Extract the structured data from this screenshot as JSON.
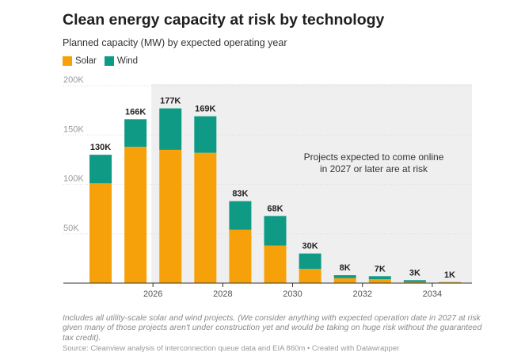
{
  "colors": {
    "solar": "#f7a10a",
    "wind": "#0f9a86",
    "risk_band": "#efefef",
    "axis_text": "#999999",
    "gridline": "#dedede"
  },
  "chart_data": {
    "type": "bar",
    "stacked": true,
    "title": "Clean energy capacity at risk by technology",
    "subtitle": "Planned capacity (MW) by expected operating year",
    "categories": [
      "2025",
      "2026",
      "2027",
      "2028",
      "2029",
      "2030",
      "2031",
      "2032",
      "2033",
      "2034",
      "2035"
    ],
    "series": [
      {
        "name": "Solar",
        "values": [
          101000,
          138000,
          135000,
          132000,
          54000,
          38000,
          14500,
          5000,
          4000,
          1000,
          800
        ]
      },
      {
        "name": "Wind",
        "values": [
          29000,
          28000,
          42000,
          37000,
          29000,
          30000,
          15500,
          3000,
          3000,
          2000,
          200
        ]
      }
    ],
    "totals": [
      130000,
      166000,
      177000,
      169000,
      83000,
      68000,
      30000,
      8000,
      7000,
      3000,
      1000
    ],
    "total_labels": [
      "130K",
      "166K",
      "177K",
      "169K",
      "83K",
      "68K",
      "30K",
      "8K",
      "7K",
      "3K",
      "1K"
    ],
    "xtick_labels": [
      "2026",
      "2028",
      "2030",
      "2032",
      "2034"
    ],
    "xtick_categories": [
      "2026",
      "2028",
      "2030",
      "2032",
      "2034"
    ],
    "yticks": [
      50000,
      100000,
      150000,
      200000
    ],
    "ytick_labels": [
      "50K",
      "100K",
      "150K",
      "200K"
    ],
    "ylim": [
      0,
      200000
    ],
    "xlabel": "",
    "ylabel": "",
    "legend_position": "top-left",
    "grid": true,
    "highlight_from_category": "2027",
    "annotation": [
      "Projects expected to come online",
      "in 2027 or later are at risk"
    ]
  },
  "notes": {
    "text": "Includes all utility-scale solar and wind projects. (We consider anything with expected operation date in 2027 at risk given many of those projects aren't under construction yet and would be taking on huge risk without the guaranteed tax credit).",
    "source": "Source: Cleanview analysis of interconnection queue data and EIA 860m • Created with Datawrapper"
  }
}
